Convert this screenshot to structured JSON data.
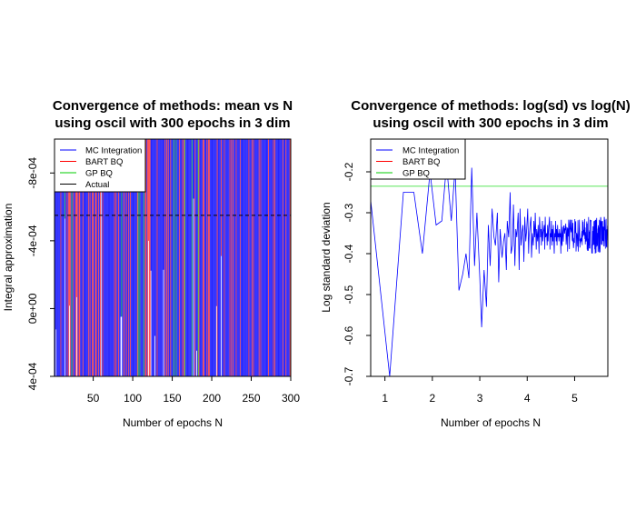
{
  "chart_data": [
    {
      "type": "line",
      "title": "Convergence of methods: mean vs N",
      "subtitle": "using oscil with 300 epochs in 3 dim",
      "xlabel": "Number of epochs N",
      "ylabel": "Integral approximation",
      "xlim": [
        1,
        300
      ],
      "ylim": [
        0.0004,
        -0.001
      ],
      "x_ticks": [
        50,
        100,
        150,
        200,
        250,
        300
      ],
      "y_ticks": [
        {
          "value": -0.0008,
          "label": "-8e-04"
        },
        {
          "value": -0.0004,
          "label": "-4e-04"
        },
        {
          "value": 0.0,
          "label": "0e+00"
        },
        {
          "value": 0.0004,
          "label": "4e-04"
        }
      ],
      "legend": {
        "position": "top-left",
        "entries": [
          {
            "label": "MC Integration",
            "color": "#0000ff"
          },
          {
            "label": "BART BQ",
            "color": "#ff0000"
          },
          {
            "label": "GP BQ",
            "color": "#00cc00"
          },
          {
            "label": "Actual",
            "color": "#000000"
          }
        ]
      },
      "actual_value": -0.00055,
      "series": [
        {
          "name": "MC Integration",
          "color": "#0000ff",
          "pattern": "oscillates across full plotted range every epoch"
        },
        {
          "name": "BART BQ",
          "color": "#ff0000",
          "pattern": "oscillates across full plotted range"
        },
        {
          "name": "GP BQ",
          "color": "#00cc00",
          "pattern": "occasional spikes across plotted range"
        }
      ]
    },
    {
      "type": "line",
      "title": "Convergence of methods: log(sd) vs log(N)",
      "subtitle": "using oscil with 300 epochs in 3 dim",
      "xlabel": "Number of epochs N",
      "ylabel": "Log standard deviation",
      "xlim": [
        0.7,
        5.7
      ],
      "ylim": [
        -0.7,
        -0.12
      ],
      "x_ticks": [
        1,
        2,
        3,
        4,
        5
      ],
      "y_ticks": [
        {
          "value": -0.2,
          "label": "-0.2"
        },
        {
          "value": -0.3,
          "label": "-0.3"
        },
        {
          "value": -0.4,
          "label": "-0.4"
        },
        {
          "value": -0.5,
          "label": "-0.5"
        },
        {
          "value": -0.6,
          "label": "-0.6"
        },
        {
          "value": -0.7,
          "label": "-0.7"
        }
      ],
      "legend": {
        "position": "top-left",
        "entries": [
          {
            "label": "MC Integration",
            "color": "#0000ff"
          },
          {
            "label": "BART BQ",
            "color": "#ff0000"
          },
          {
            "label": "GP BQ",
            "color": "#00cc00"
          }
        ]
      },
      "series": [
        {
          "name": "MC Integration",
          "color": "#0000ff",
          "x": [
            0.69,
            1.1,
            1.39,
            1.61,
            1.79,
            1.95,
            2.08,
            2.2,
            2.3,
            2.4,
            2.48,
            2.56,
            2.64,
            2.71,
            2.77,
            2.83,
            2.89,
            2.94,
            3.0,
            3.04,
            3.09,
            3.14,
            3.18,
            3.22,
            3.26,
            3.3,
            3.33,
            3.37,
            3.4,
            3.43,
            3.47,
            3.5,
            3.53,
            3.56,
            3.58,
            3.61,
            3.64,
            3.66,
            3.69,
            3.71,
            3.74,
            3.76,
            3.78,
            3.81,
            3.83,
            3.85,
            3.87,
            3.89,
            3.91,
            3.93,
            3.95,
            3.97,
            3.99,
            4.01,
            4.03,
            4.04,
            4.06,
            4.08,
            4.09,
            4.11,
            4.13,
            4.14,
            4.16,
            4.17,
            4.19,
            4.2,
            4.22,
            4.23,
            4.25,
            4.26,
            4.28,
            4.29,
            4.3,
            4.32,
            4.33,
            4.34,
            4.36,
            4.37,
            4.38,
            4.39,
            4.41,
            4.42,
            4.43,
            4.44,
            4.45,
            4.47,
            4.48,
            4.49,
            4.5,
            4.51,
            4.52,
            4.53,
            4.54,
            4.55,
            4.57,
            4.58,
            4.59,
            4.6,
            4.61,
            4.62,
            4.63,
            4.64,
            4.65,
            4.66,
            4.67,
            4.68,
            4.69,
            4.7
          ],
          "y": [
            -0.26,
            -0.7,
            -0.25,
            -0.25,
            -0.4,
            -0.2,
            -0.33,
            -0.32,
            -0.18,
            -0.32,
            -0.19,
            -0.49,
            -0.45,
            -0.4,
            -0.46,
            -0.19,
            -0.43,
            -0.3,
            -0.46,
            -0.58,
            -0.44,
            -0.53,
            -0.33,
            -0.43,
            -0.29,
            -0.36,
            -0.38,
            -0.3,
            -0.47,
            -0.34,
            -0.41,
            -0.37,
            -0.35,
            -0.44,
            -0.32,
            -0.36,
            -0.25,
            -0.4,
            -0.38,
            -0.28,
            -0.43,
            -0.34,
            -0.36,
            -0.3,
            -0.44,
            -0.29,
            -0.38,
            -0.35,
            -0.33,
            -0.42,
            -0.31,
            -0.37,
            -0.34,
            -0.29,
            -0.4,
            -0.36,
            -0.33,
            -0.31,
            -0.41,
            -0.35,
            -0.38,
            -0.32,
            -0.36,
            -0.3,
            -0.39,
            -0.34,
            -0.37,
            -0.33,
            -0.4,
            -0.31,
            -0.36,
            -0.34,
            -0.38,
            -0.32,
            -0.37,
            -0.35,
            -0.33,
            -0.39,
            -0.31,
            -0.36,
            -0.35,
            -0.38,
            -0.33,
            -0.37,
            -0.34,
            -0.31,
            -0.39,
            -0.35,
            -0.36,
            -0.32,
            -0.38,
            -0.34,
            -0.37,
            -0.33,
            -0.4,
            -0.35,
            -0.36,
            -0.32,
            -0.37,
            -0.34,
            -0.38,
            -0.33,
            -0.36,
            -0.35,
            -0.37,
            -0.34,
            -0.36,
            -0.35
          ]
        },
        {
          "name": "GP BQ",
          "color": "#00cc00",
          "x": [
            0.69,
            5.7
          ],
          "y": [
            -0.235,
            -0.235
          ]
        }
      ]
    }
  ]
}
